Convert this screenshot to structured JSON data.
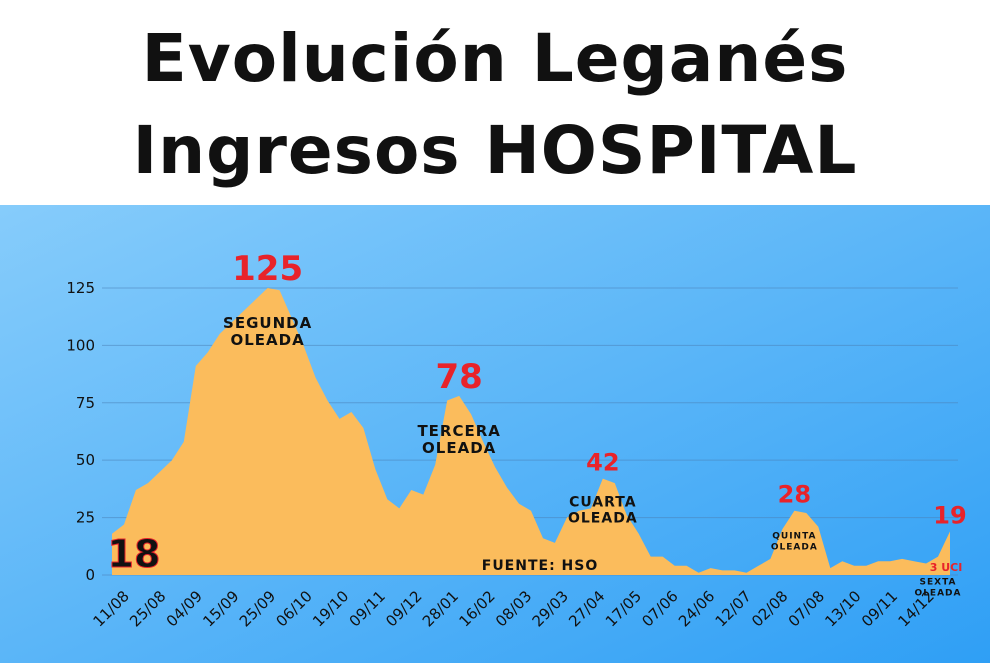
{
  "title_line1": "Evolución Leganés",
  "title_line2": "Ingresos HOSPITAL",
  "chart_data": {
    "type": "area",
    "color": "#fbbc5c",
    "background_gradient": [
      "#86ccfb",
      "#2f9ff5"
    ],
    "ylim": [
      0,
      135
    ],
    "yticks": [
      0,
      25,
      50,
      75,
      100,
      125
    ],
    "x_tick_labels": [
      "11/08",
      "25/08",
      "04/09",
      "15/09",
      "25/09",
      "06/10",
      "19/10",
      "09/11",
      "09/12",
      "28/01",
      "16/02",
      "08/03",
      "29/03",
      "27/04",
      "17/05",
      "07/06",
      "24/06",
      "12/07",
      "02/08",
      "07/08",
      "13/10",
      "09/11",
      "14/12"
    ],
    "values": [
      18,
      22,
      37,
      40,
      45,
      50,
      58,
      91,
      97,
      105,
      110,
      115,
      120,
      125,
      124,
      112,
      100,
      86,
      76,
      68,
      71,
      64,
      46,
      33,
      29,
      37,
      35,
      48,
      76,
      78,
      70,
      58,
      47,
      38,
      31,
      28,
      16,
      14,
      25,
      28,
      29,
      42,
      40,
      26,
      18,
      8,
      8,
      4,
      4,
      1,
      3,
      2,
      2,
      1,
      4,
      7,
      20,
      28,
      27,
      21,
      3,
      6,
      4,
      4,
      6,
      6,
      7,
      6,
      5,
      8,
      19
    ],
    "annotations": [
      {
        "text": "18",
        "idx": 0,
        "kind": "peak-black"
      },
      {
        "text": "125",
        "idx": 13,
        "kind": "peak"
      },
      {
        "text": "SEGUNDA",
        "idx": 13,
        "line": 1
      },
      {
        "text": "OLEADA",
        "idx": 13,
        "line": 2
      },
      {
        "text": "78",
        "idx": 29,
        "kind": "peak"
      },
      {
        "text": "TERCERA",
        "idx": 29,
        "line": 1
      },
      {
        "text": "OLEADA",
        "idx": 29,
        "line": 2
      },
      {
        "text": "42",
        "idx": 41,
        "kind": "peak"
      },
      {
        "text": "CUARTA",
        "idx": 41,
        "line": 1
      },
      {
        "text": "OLEADA",
        "idx": 41,
        "line": 2
      },
      {
        "text": "28",
        "idx": 57,
        "kind": "peak"
      },
      {
        "text": "QUINTA",
        "idx": 57,
        "line": 1
      },
      {
        "text": "OLEADA",
        "idx": 57,
        "line": 2
      },
      {
        "text": "SEXTA",
        "idx": 69,
        "line": 1
      },
      {
        "text": "OLEADA",
        "idx": 69,
        "line": 2
      },
      {
        "text": "19",
        "idx": 70,
        "kind": "peak"
      },
      {
        "text": "3 UCI",
        "idx": 69,
        "kind": "small-red"
      },
      {
        "text": "FUENTE: HSO",
        "kind": "source"
      }
    ]
  }
}
